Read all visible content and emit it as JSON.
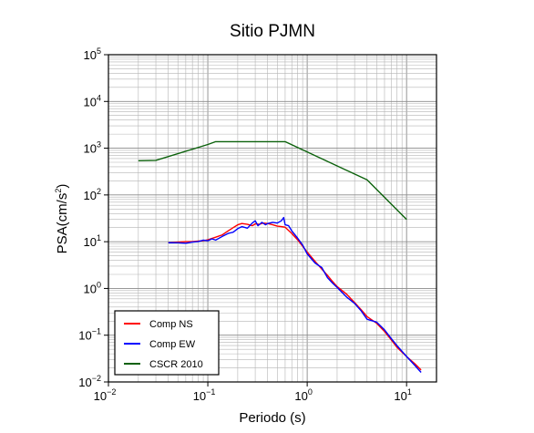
{
  "chart_data": {
    "type": "line",
    "title": "Sitio PJMN",
    "xlabel": "Periodo (s)",
    "ylabel": {
      "base": "PSA(cm/s",
      "sup": "2",
      "close": ")"
    },
    "xscale": "log",
    "yscale": "log",
    "xlim": [
      0.01,
      20
    ],
    "ylim": [
      0.01,
      100000
    ],
    "grid": true,
    "x_ticks": [
      {
        "base": "10",
        "exp": "−2",
        "value": 0.01
      },
      {
        "base": "10",
        "exp": "−1",
        "value": 0.1
      },
      {
        "base": "10",
        "exp": "0",
        "value": 1
      },
      {
        "base": "10",
        "exp": "1",
        "value": 10
      }
    ],
    "y_ticks": [
      {
        "base": "10",
        "exp": "−2",
        "value": 0.01
      },
      {
        "base": "10",
        "exp": "−1",
        "value": 0.1
      },
      {
        "base": "10",
        "exp": "0",
        "value": 1
      },
      {
        "base": "10",
        "exp": "1",
        "value": 10
      },
      {
        "base": "10",
        "exp": "2",
        "value": 100
      },
      {
        "base": "10",
        "exp": "3",
        "value": 1000
      },
      {
        "base": "10",
        "exp": "4",
        "value": 10000
      },
      {
        "base": "10",
        "exp": "5",
        "value": 100000
      }
    ],
    "legend_position": "bottom-left",
    "series": [
      {
        "name": "Comp NS",
        "color": "#ff0000",
        "x": [
          0.04,
          0.05,
          0.06,
          0.07,
          0.08,
          0.09,
          0.1,
          0.12,
          0.14,
          0.16,
          0.18,
          0.2,
          0.22,
          0.25,
          0.28,
          0.3,
          0.33,
          0.36,
          0.4,
          0.45,
          0.5,
          0.55,
          0.6,
          0.7,
          0.8,
          0.9,
          1.0,
          1.2,
          1.4,
          1.6,
          1.8,
          2.0,
          2.5,
          3.0,
          3.5,
          4.0,
          5.0,
          6.0,
          7.0,
          8.0,
          10.0,
          12.0,
          14.0
        ],
        "y": [
          9.5,
          9.8,
          10.0,
          10.0,
          10.3,
          10.5,
          11.0,
          12.5,
          14.0,
          17.0,
          20.0,
          23.0,
          24.5,
          23.5,
          22.0,
          24.0,
          23.5,
          25.0,
          24.5,
          23.0,
          21.5,
          21.0,
          20.5,
          15.0,
          11.0,
          8.0,
          6.0,
          3.8,
          2.6,
          1.9,
          1.4,
          1.1,
          0.75,
          0.5,
          0.35,
          0.25,
          0.18,
          0.12,
          0.08,
          0.055,
          0.035,
          0.025,
          0.018
        ]
      },
      {
        "name": "Comp EW",
        "color": "#0000ff",
        "x": [
          0.04,
          0.05,
          0.06,
          0.07,
          0.08,
          0.09,
          0.1,
          0.11,
          0.12,
          0.14,
          0.16,
          0.18,
          0.2,
          0.22,
          0.25,
          0.28,
          0.3,
          0.32,
          0.35,
          0.38,
          0.4,
          0.45,
          0.5,
          0.55,
          0.58,
          0.6,
          0.65,
          0.7,
          0.8,
          0.9,
          1.0,
          1.2,
          1.4,
          1.6,
          1.8,
          2.0,
          2.5,
          3.0,
          3.5,
          4.0,
          5.0,
          6.0,
          7.0,
          8.0,
          10.0,
          12.0,
          14.0
        ],
        "y": [
          9.5,
          9.5,
          9.3,
          9.8,
          10.0,
          10.8,
          10.5,
          11.5,
          10.8,
          13.0,
          15.0,
          16.0,
          19.0,
          21.0,
          19.5,
          25.0,
          28.0,
          22.0,
          26.0,
          23.0,
          24.5,
          26.0,
          25.0,
          28.0,
          33.0,
          23.0,
          22.0,
          17.0,
          12.0,
          8.5,
          5.5,
          3.5,
          2.8,
          1.7,
          1.3,
          1.05,
          0.65,
          0.48,
          0.33,
          0.22,
          0.19,
          0.13,
          0.085,
          0.06,
          0.035,
          0.023,
          0.016
        ]
      },
      {
        "name": "CSCR 2010",
        "color": "#0b610b",
        "x": [
          0.02,
          0.03,
          0.1,
          0.12,
          0.6,
          4.0,
          10.0
        ],
        "y": [
          540,
          550,
          1200,
          1380,
          1380,
          210,
          30
        ]
      }
    ]
  }
}
